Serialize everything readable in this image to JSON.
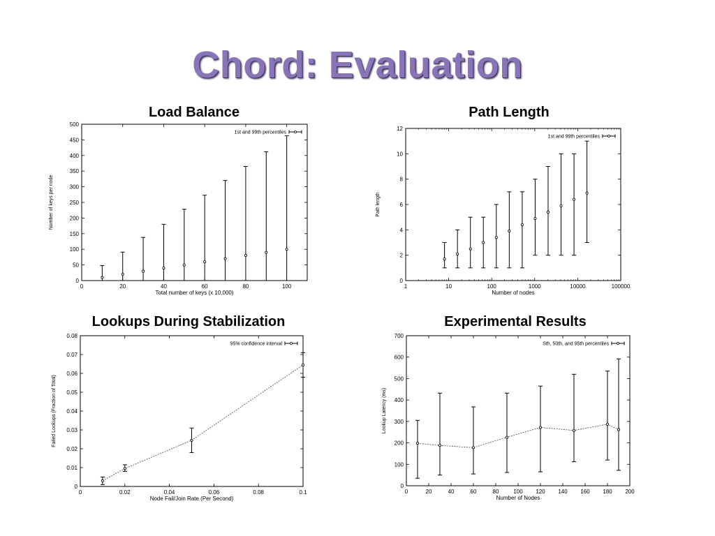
{
  "title": "Chord: Evaluation",
  "chart_data": [
    {
      "type": "scatter",
      "panel_title": "Load Balance",
      "xlabel": "Total number of keys (x 10,000)",
      "ylabel": "Number of keys per node",
      "xlim": [
        0,
        110
      ],
      "ylim": [
        0,
        500
      ],
      "x_ticks": [
        0,
        20,
        40,
        60,
        80,
        100
      ],
      "y_ticks": [
        0,
        50,
        100,
        150,
        200,
        250,
        300,
        350,
        400,
        450,
        500
      ],
      "x_scale": "linear",
      "grid": false,
      "legend_position": "top-right",
      "connect_points": false,
      "series": [
        {
          "name": "1st and 99th percentiles",
          "x": [
            10,
            20,
            30,
            40,
            50,
            60,
            70,
            80,
            90,
            100
          ],
          "y": [
            10,
            20,
            30,
            40,
            50,
            60,
            70,
            80,
            90,
            100
          ],
          "lower": [
            0,
            0,
            0,
            0,
            0,
            0,
            0,
            0,
            0,
            0
          ],
          "upper": [
            48,
            91,
            138,
            180,
            228,
            273,
            320,
            365,
            412,
            463
          ]
        }
      ]
    },
    {
      "type": "scatter",
      "panel_title": "Path Length",
      "xlabel": "Number of nodes",
      "ylabel": "Path length",
      "xlim": [
        1,
        100000
      ],
      "ylim": [
        0,
        12
      ],
      "x_ticks": [
        1,
        10,
        100,
        1000,
        10000,
        100000
      ],
      "y_ticks": [
        0,
        2,
        4,
        6,
        8,
        10,
        12
      ],
      "x_scale": "log",
      "grid": false,
      "legend_position": "top-right",
      "connect_points": false,
      "series": [
        {
          "name": "1st and 99th percentiles",
          "x": [
            8,
            16,
            32,
            64,
            128,
            256,
            512,
            1024,
            2048,
            4096,
            8192,
            16384
          ],
          "y": [
            1.7,
            2.1,
            2.5,
            3.0,
            3.4,
            3.9,
            4.4,
            4.9,
            5.4,
            5.9,
            6.4,
            6.9
          ],
          "lower": [
            1,
            1,
            1,
            1,
            1,
            1,
            1,
            2,
            2,
            2,
            2,
            3
          ],
          "upper": [
            3,
            4,
            5,
            5,
            6,
            7,
            7,
            8,
            9,
            10,
            10,
            11
          ]
        }
      ]
    },
    {
      "type": "line",
      "panel_title": "Lookups During Stabilization",
      "xlabel": "Node Fail/Join Rate (Per Second)",
      "ylabel": "Failed Lookups (Fraction of Total)",
      "xlim": [
        0,
        0.1
      ],
      "ylim": [
        0,
        0.08
      ],
      "x_ticks": [
        0,
        0.02,
        0.04,
        0.06,
        0.08,
        0.1
      ],
      "y_ticks": [
        0,
        0.01,
        0.02,
        0.03,
        0.04,
        0.05,
        0.06,
        0.07,
        0.08
      ],
      "x_scale": "linear",
      "grid": false,
      "legend_position": "top-right",
      "connect_points": true,
      "series": [
        {
          "name": "95% confidence interval",
          "x": [
            0.01,
            0.02,
            0.05,
            0.1
          ],
          "y": [
            0.003,
            0.0095,
            0.0245,
            0.0645
          ],
          "lower": [
            0.001,
            0.008,
            0.018,
            0.058
          ],
          "upper": [
            0.005,
            0.0115,
            0.031,
            0.071
          ]
        }
      ]
    },
    {
      "type": "line",
      "panel_title": "Experimental Results",
      "xlabel": "Number of Nodes",
      "ylabel": "Lookup Latency (ms)",
      "xlim": [
        0,
        200
      ],
      "ylim": [
        0,
        700
      ],
      "x_ticks": [
        0,
        20,
        40,
        60,
        80,
        100,
        120,
        140,
        160,
        180,
        200
      ],
      "y_ticks": [
        0,
        100,
        200,
        300,
        400,
        500,
        600,
        700
      ],
      "x_scale": "linear",
      "grid": false,
      "legend_position": "top-right",
      "connect_points": true,
      "series": [
        {
          "name": "5th, 50th, and 95th percentiles",
          "x": [
            10,
            30,
            60,
            90,
            120,
            150,
            180,
            190
          ],
          "y": [
            198,
            188,
            178,
            226,
            272,
            258,
            287,
            262
          ],
          "lower": [
            35,
            50,
            55,
            62,
            65,
            112,
            120,
            72
          ],
          "upper": [
            305,
            432,
            368,
            432,
            465,
            520,
            535,
            592
          ]
        }
      ]
    }
  ]
}
